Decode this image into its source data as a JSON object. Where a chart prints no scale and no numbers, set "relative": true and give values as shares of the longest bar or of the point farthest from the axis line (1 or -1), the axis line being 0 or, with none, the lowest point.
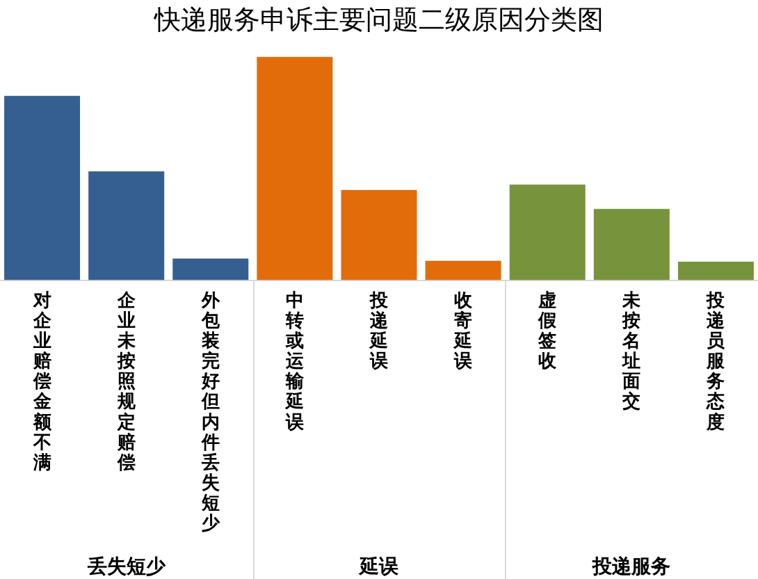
{
  "chart_data": {
    "type": "bar",
    "title": "快递服务申诉主要问题二级原因分类图",
    "relative": true,
    "grid": false,
    "legend": false,
    "categories": [
      "对企业赔偿金额不满",
      "企业未按照规定赔偿",
      "外包装完好但内件丢失短少",
      "中转或运输延误",
      "投递延误",
      "收寄延误",
      "虚假签收",
      "未按名址面交",
      "投递员服务态度"
    ],
    "values": [
      0.825,
      0.487,
      0.097,
      1,
      0.404,
      0.087,
      0.428,
      0.319,
      0.083
    ],
    "colors": [
      "#355f91",
      "#355f91",
      "#355f91",
      "#e36c0a",
      "#e36c0a",
      "#e36c0a",
      "#77933c",
      "#77933c",
      "#77933c"
    ],
    "annotations": [
      "丢失短少",
      "延误",
      "投递服务"
    ]
  }
}
